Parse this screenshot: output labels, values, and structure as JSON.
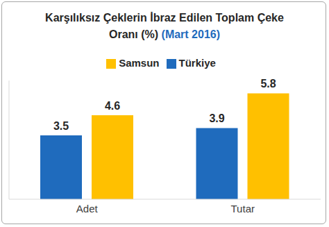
{
  "chart_data": {
    "type": "bar",
    "title": "Karşılıksız Çeklerin İbraz Edilen Toplam Çeke Oranı (%)",
    "subtitle": "(Mart 2016)",
    "categories": [
      "Adet",
      "Tutar"
    ],
    "series": [
      {
        "name": "Türkiye",
        "color": "#1f6bbd",
        "values": [
          3.5,
          3.9
        ]
      },
      {
        "name": "Samsun",
        "color": "#ffc000",
        "values": [
          4.6,
          5.8
        ]
      }
    ],
    "ylim": [
      0,
      6.5
    ],
    "data_labels": true,
    "tick_labels": "x",
    "grid": false,
    "legend": "top"
  }
}
